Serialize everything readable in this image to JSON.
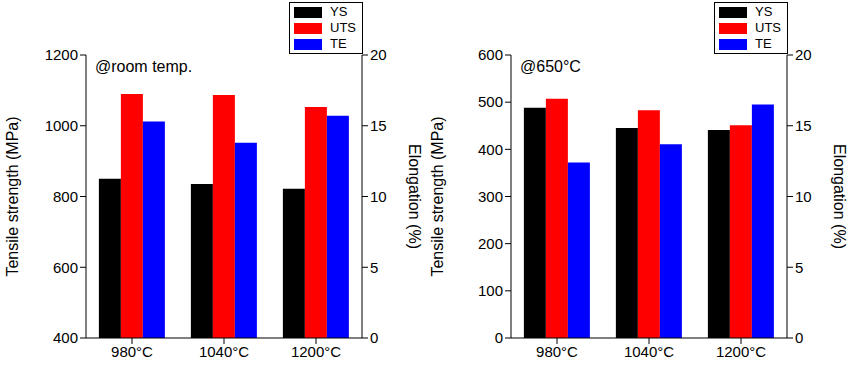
{
  "chart_data": [
    {
      "type": "bar",
      "annotations": [
        "@room temp."
      ],
      "categories": [
        "980°C",
        "1040°C",
        "1200°C"
      ],
      "series": [
        {
          "name": "YS",
          "color": "#000000",
          "values": [
            850,
            835,
            822
          ]
        },
        {
          "name": "UTS",
          "color": "#ff0000",
          "values": [
            1090,
            1087,
            1053
          ]
        },
        {
          "name": "TE",
          "color": "#0000ff",
          "values": [
            15.3,
            13.8,
            15.7
          ],
          "axis": "y2"
        }
      ],
      "y_label": "Tensile strength (MPa)",
      "y2_label": "Elongation (%)",
      "ylim": [
        400,
        1200
      ],
      "yticks": [
        400,
        600,
        800,
        1000,
        1200
      ],
      "y2lim": [
        0,
        20
      ],
      "y2ticks": [
        0,
        5,
        10,
        15,
        20
      ],
      "legend": "upper right"
    },
    {
      "type": "bar",
      "annotations": [
        "@650°C"
      ],
      "categories": [
        "980°C",
        "1040°C",
        "1200°C"
      ],
      "series": [
        {
          "name": "YS",
          "color": "#000000",
          "values": [
            488,
            445,
            441
          ]
        },
        {
          "name": "UTS",
          "color": "#ff0000",
          "values": [
            507,
            483,
            451
          ]
        },
        {
          "name": "TE",
          "color": "#0000ff",
          "values": [
            12.4,
            13.7,
            16.5
          ],
          "axis": "y2"
        }
      ],
      "y_label": "Tensile strength (MPa)",
      "y2_label": "Elongation (%)",
      "ylim": [
        0,
        600
      ],
      "yticks": [
        0,
        100,
        200,
        300,
        400,
        500,
        600
      ],
      "y2lim": [
        0,
        20
      ],
      "y2ticks": [
        0,
        5,
        10,
        15,
        20
      ],
      "legend": "upper right"
    }
  ]
}
